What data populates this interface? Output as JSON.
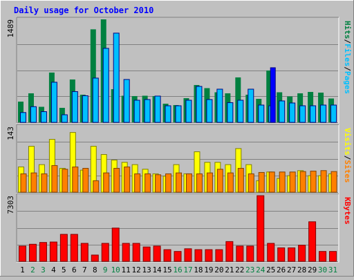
{
  "chart_data": [
    {
      "type": "bar",
      "title": "Daily usage for October 2010",
      "categories": [
        "1",
        "2",
        "3",
        "4",
        "5",
        "6",
        "7",
        "8",
        "9",
        "10",
        "11",
        "12",
        "13",
        "14",
        "15",
        "16",
        "17",
        "18",
        "19",
        "20",
        "21",
        "22",
        "23",
        "24",
        "25",
        "26",
        "27",
        "28",
        "29",
        "30",
        "31"
      ],
      "weekend_days": [
        "2",
        "3",
        "9",
        "10",
        "16",
        "17",
        "23",
        "24",
        "30",
        "31"
      ],
      "ymax_label": "1489",
      "ylim": [
        0,
        1489
      ],
      "right_label_parts": [
        "Pages",
        "/",
        "Files",
        "/",
        "Hits"
      ],
      "series": [
        {
          "name": "Hits",
          "color": "#008040",
          "values": [
            300,
            420,
            225,
            720,
            210,
            620,
            400,
            1345,
            1489,
            480,
            385,
            380,
            385,
            380,
            270,
            250,
            350,
            540,
            495,
            435,
            420,
            650,
            400,
            340,
            750,
            435,
            375,
            420,
            440,
            430,
            345
          ]
        },
        {
          "name": "Files",
          "color": "#00c0ff",
          "values": [
            142,
            227,
            155,
            580,
            110,
            445,
            385,
            640,
            1070,
            1290,
            620,
            320,
            330,
            380,
            240,
            240,
            320,
            520,
            330,
            480,
            285,
            320,
            480,
            250,
            240,
            310,
            280,
            240,
            240,
            250,
            250
          ]
        },
        {
          "name": "Pages",
          "color": "#0000ff",
          "values": [
            0,
            0,
            0,
            0,
            0,
            0,
            0,
            0,
            0,
            0,
            0,
            0,
            0,
            0,
            0,
            0,
            0,
            0,
            0,
            0,
            0,
            0,
            0,
            0,
            790,
            0,
            0,
            0,
            0,
            0,
            0
          ]
        }
      ]
    },
    {
      "type": "bar",
      "ymax_label": "143",
      "ylim": [
        0,
        143
      ],
      "right_label_parts": [
        "Sites",
        "/",
        "Visits"
      ],
      "series": [
        {
          "name": "Visits",
          "color": "#ffff00",
          "values": [
            55,
            100,
            60,
            115,
            52,
            130,
            48,
            100,
            82,
            70,
            65,
            60,
            50,
            40,
            35,
            60,
            40,
            88,
            65,
            65,
            60,
            95,
            60,
            25,
            44,
            30,
            36,
            47,
            36,
            36,
            40
          ]
        },
        {
          "name": "Sites",
          "color": "#ff8000",
          "values": [
            40,
            42,
            40,
            58,
            50,
            55,
            52,
            25,
            42,
            52,
            55,
            40,
            40,
            38,
            40,
            42,
            40,
            40,
            42,
            50,
            42,
            52,
            40,
            43,
            44,
            44,
            44,
            45,
            46,
            47,
            45
          ]
        }
      ]
    },
    {
      "type": "bar",
      "ymax_label": "7303",
      "ylim": [
        0,
        7303
      ],
      "right_label_parts": [
        "KBytes"
      ],
      "series": [
        {
          "name": "KBytes",
          "color": "#ff0000",
          "values": [
            1700,
            1900,
            2100,
            2150,
            3000,
            3000,
            2000,
            700,
            2000,
            3700,
            2000,
            2000,
            1600,
            1700,
            1300,
            1100,
            1400,
            1300,
            1300,
            1300,
            2200,
            1700,
            1700,
            7303,
            2000,
            1500,
            1500,
            1800,
            4400,
            1100,
            1100
          ]
        }
      ]
    }
  ]
}
